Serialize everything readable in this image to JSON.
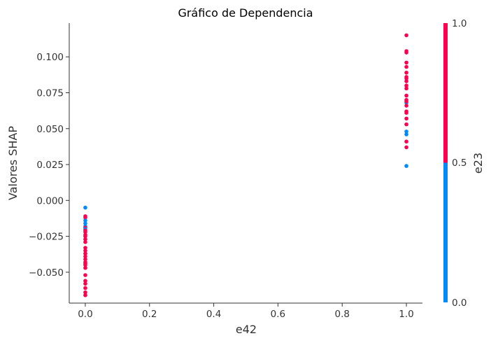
{
  "chart_data": {
    "type": "scatter",
    "title": "Gráfico de Dependencia",
    "xlabel": "e42",
    "ylabel": "Valores SHAP",
    "xlim": [
      -0.05,
      1.05
    ],
    "ylim": [
      -0.0715,
      0.1235
    ],
    "x_ticks": [
      0.0,
      0.2,
      0.4,
      0.6,
      0.8,
      1.0
    ],
    "x_tick_labels": [
      "0.0",
      "0.2",
      "0.4",
      "0.6",
      "0.8",
      "1.0"
    ],
    "y_ticks": [
      -0.05,
      -0.025,
      0.0,
      0.025,
      0.05,
      0.075,
      0.1
    ],
    "y_tick_labels": [
      "−0.050",
      "−0.025",
      "0.000",
      "0.025",
      "0.050",
      "0.075",
      "0.100"
    ],
    "grid": false,
    "colorbar": {
      "label": "e23",
      "ticks": [
        "0.0",
        "0.5",
        "1.0"
      ],
      "low_color": "#008bfb",
      "high_color": "#ff0051"
    },
    "colors": {
      "low": "#008bfb",
      "high": "#ff0051"
    },
    "points": [
      {
        "x": 0.0,
        "y": -0.005,
        "c": 0
      },
      {
        "x": 0.0,
        "y": -0.011,
        "c": 1
      },
      {
        "x": 0.0,
        "y": -0.012,
        "c": 1
      },
      {
        "x": 0.0,
        "y": -0.014,
        "c": 0
      },
      {
        "x": 0.0,
        "y": -0.016,
        "c": 0
      },
      {
        "x": 0.0,
        "y": -0.018,
        "c": 0
      },
      {
        "x": 0.0,
        "y": -0.019,
        "c": 1
      },
      {
        "x": 0.0,
        "y": -0.02,
        "c": 0
      },
      {
        "x": 0.0,
        "y": -0.021,
        "c": 1
      },
      {
        "x": 0.0,
        "y": -0.022,
        "c": 1
      },
      {
        "x": 0.0,
        "y": -0.024,
        "c": 1
      },
      {
        "x": 0.0,
        "y": -0.025,
        "c": 1
      },
      {
        "x": 0.0,
        "y": -0.027,
        "c": 1
      },
      {
        "x": 0.0,
        "y": -0.029,
        "c": 1
      },
      {
        "x": 0.0,
        "y": -0.033,
        "c": 1
      },
      {
        "x": 0.0,
        "y": -0.035,
        "c": 1
      },
      {
        "x": 0.0,
        "y": -0.037,
        "c": 1
      },
      {
        "x": 0.0,
        "y": -0.039,
        "c": 1
      },
      {
        "x": 0.0,
        "y": -0.041,
        "c": 1
      },
      {
        "x": 0.0,
        "y": -0.043,
        "c": 1
      },
      {
        "x": 0.0,
        "y": -0.044,
        "c": 1
      },
      {
        "x": 0.0,
        "y": -0.045,
        "c": 1
      },
      {
        "x": 0.0,
        "y": -0.047,
        "c": 1
      },
      {
        "x": 0.0,
        "y": -0.052,
        "c": 1
      },
      {
        "x": 0.0,
        "y": -0.056,
        "c": 1
      },
      {
        "x": 0.0,
        "y": -0.058,
        "c": 1
      },
      {
        "x": 0.0,
        "y": -0.061,
        "c": 1
      },
      {
        "x": 0.0,
        "y": -0.064,
        "c": 1
      },
      {
        "x": 0.0,
        "y": -0.066,
        "c": 1
      },
      {
        "x": 1.0,
        "y": 0.115,
        "c": 1
      },
      {
        "x": 1.0,
        "y": 0.104,
        "c": 1
      },
      {
        "x": 1.0,
        "y": 0.103,
        "c": 1
      },
      {
        "x": 1.0,
        "y": 0.096,
        "c": 1
      },
      {
        "x": 1.0,
        "y": 0.093,
        "c": 1
      },
      {
        "x": 1.0,
        "y": 0.089,
        "c": 1
      },
      {
        "x": 1.0,
        "y": 0.086,
        "c": 1
      },
      {
        "x": 1.0,
        "y": 0.085,
        "c": 1
      },
      {
        "x": 1.0,
        "y": 0.083,
        "c": 1
      },
      {
        "x": 1.0,
        "y": 0.08,
        "c": 1
      },
      {
        "x": 1.0,
        "y": 0.078,
        "c": 1
      },
      {
        "x": 1.0,
        "y": 0.073,
        "c": 1
      },
      {
        "x": 1.0,
        "y": 0.07,
        "c": 1
      },
      {
        "x": 1.0,
        "y": 0.068,
        "c": 0
      },
      {
        "x": 1.0,
        "y": 0.069,
        "c": 1
      },
      {
        "x": 1.0,
        "y": 0.066,
        "c": 1
      },
      {
        "x": 1.0,
        "y": 0.062,
        "c": 1
      },
      {
        "x": 1.0,
        "y": 0.061,
        "c": 1
      },
      {
        "x": 1.0,
        "y": 0.057,
        "c": 1
      },
      {
        "x": 1.0,
        "y": 0.053,
        "c": 1
      },
      {
        "x": 1.0,
        "y": 0.048,
        "c": 0
      },
      {
        "x": 1.0,
        "y": 0.046,
        "c": 0
      },
      {
        "x": 1.0,
        "y": 0.041,
        "c": 1
      },
      {
        "x": 1.0,
        "y": 0.037,
        "c": 1
      },
      {
        "x": 1.0,
        "y": 0.024,
        "c": 0
      }
    ]
  }
}
